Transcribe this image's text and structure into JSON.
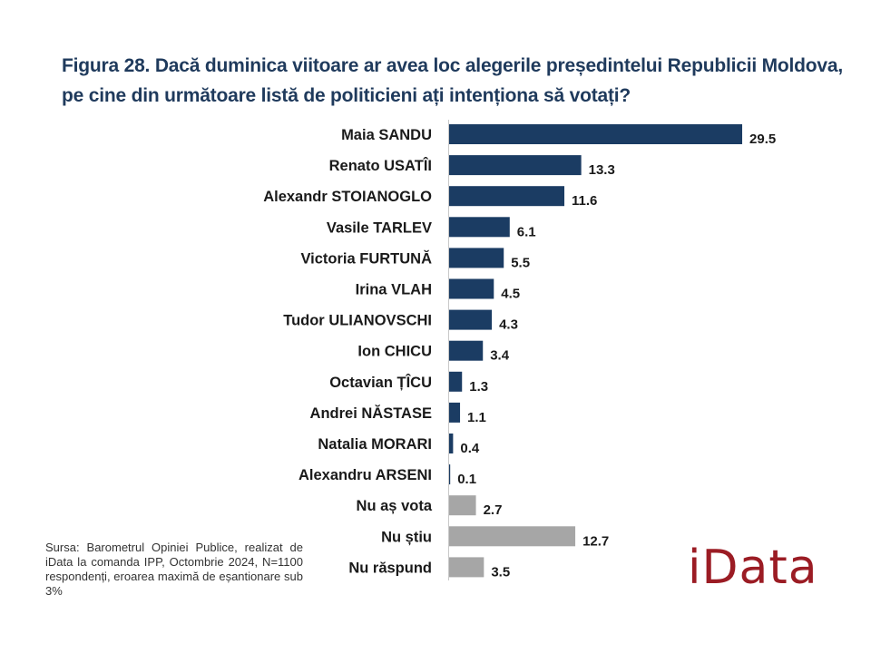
{
  "chart_data": {
    "type": "bar",
    "orientation": "horizontal",
    "title": "Figura 28. Dacă duminica viitoare ar avea loc alegerile președintelui Republicii Moldova, pe cine din următoare listă de politicieni ați intenționa să votați?",
    "categories": [
      "Maia SANDU",
      "Renato USATÎI",
      "Alexandr STOIANOGLO",
      "Vasile TARLEV",
      "Victoria FURTUNĂ",
      "Irina VLAH",
      "Tudor ULIANOVSCHI",
      "Ion CHICU",
      "Octavian ȚÎCU",
      "Andrei NĂSTASE",
      "Natalia MORARI",
      "Alexandru ARSENI",
      "Nu aș vota",
      "Nu știu",
      "Nu răspund"
    ],
    "values": [
      29.5,
      13.3,
      11.6,
      6.1,
      5.5,
      4.5,
      4.3,
      3.4,
      1.3,
      1.1,
      0.4,
      0.1,
      2.7,
      12.7,
      3.5
    ],
    "value_labels": [
      "29.5",
      "13.3",
      "11.6",
      "6.1",
      "5.5",
      "4.5",
      "4.3",
      "3.4",
      "1.3",
      "1.1",
      "0.4",
      "0.1",
      "2.7",
      "12.7",
      "3.5"
    ],
    "groups": [
      "candidate",
      "candidate",
      "candidate",
      "candidate",
      "candidate",
      "candidate",
      "candidate",
      "candidate",
      "candidate",
      "candidate",
      "candidate",
      "candidate",
      "other",
      "other",
      "other"
    ],
    "xlabel": "",
    "ylabel": "",
    "xlim": [
      0,
      30
    ],
    "grid": false,
    "legend": "none"
  },
  "colors": {
    "candidate_bar": "#1b3c63",
    "other_bar": "#a6a6a6",
    "title": "#1f3a5c",
    "logo": "#9b1c24",
    "axis": "#c8c8c8"
  },
  "source_note": "Sursa: Barometrul Opiniei Publice, realizat de iData la comanda IPP, Octombrie 2024, N=1100 respondenți, eroarea maximă de eșantionare sub 3%",
  "logo_text": "iData"
}
